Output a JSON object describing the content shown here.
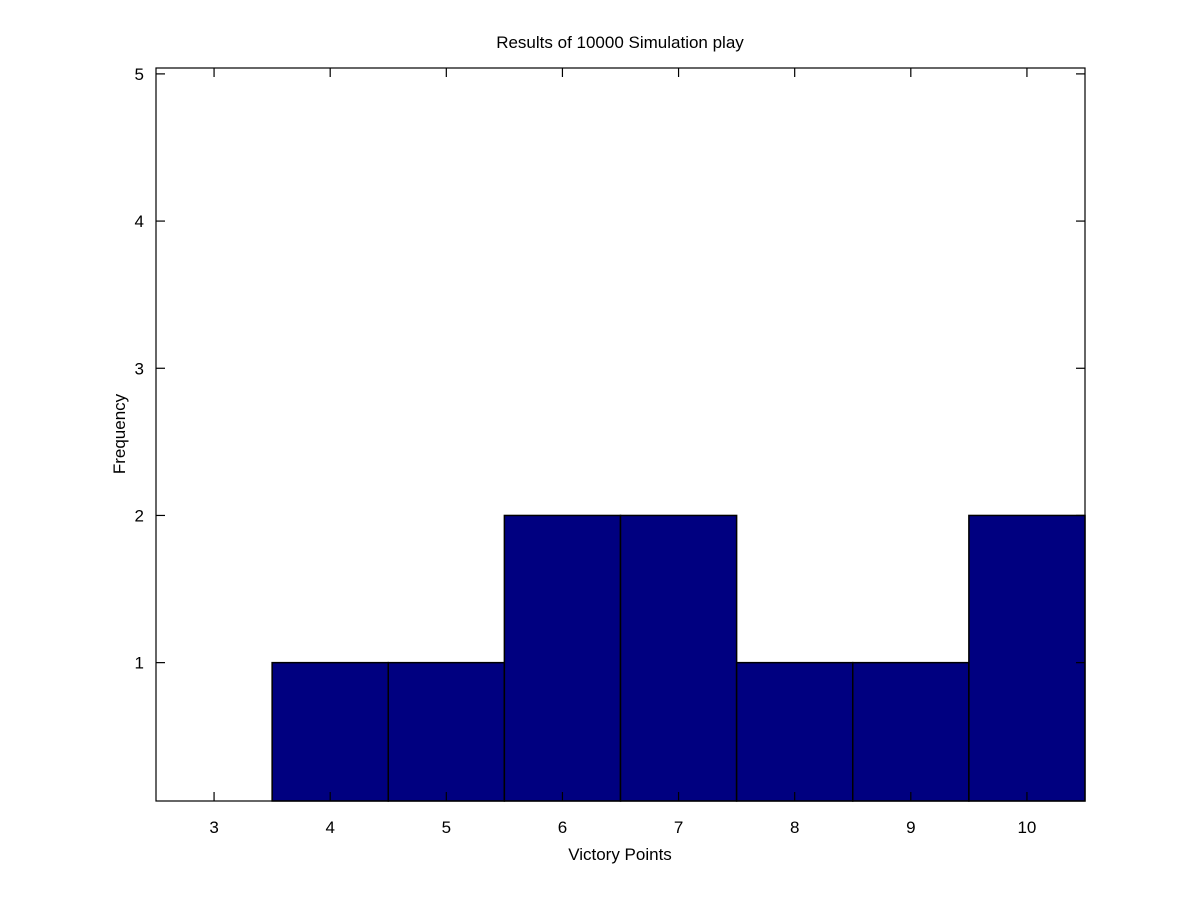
{
  "chart_data": {
    "type": "bar",
    "title": "Results of 10000 Simulation play",
    "xlabel": "Victory Points",
    "ylabel": "Frequency",
    "categories": [
      3,
      4,
      5,
      6,
      7,
      8,
      9,
      10
    ],
    "values": [
      0,
      1,
      1,
      2,
      2,
      1,
      1,
      2
    ],
    "xlim": [
      2.5,
      10.5
    ],
    "ylim": [
      0.06,
      5.04
    ],
    "yticks": [
      1,
      2,
      3,
      4,
      5
    ],
    "grid": false,
    "bar_color": "#000080",
    "edge_color": "#000000"
  }
}
